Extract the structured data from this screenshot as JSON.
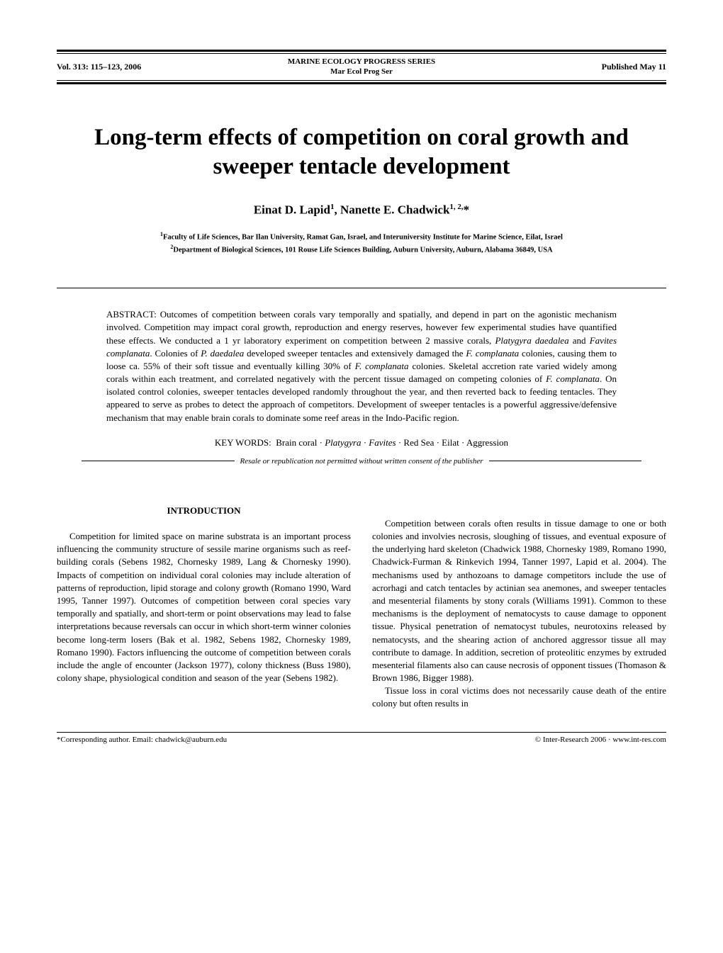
{
  "header": {
    "volume": "Vol. 313: 115–123, 2006",
    "journal_full": "MARINE ECOLOGY PROGRESS SERIES",
    "journal_abbr": "Mar Ecol Prog Ser",
    "published": "Published May 11"
  },
  "title": "Long-term effects of competition on coral growth and sweeper tentacle development",
  "authors_html": "Einat D. Lapid<sup>1</sup>, Nanette E. Chadwick<sup>1, 2,</sup>*",
  "affiliations": {
    "aff1": "Faculty of Life Sciences, Bar Ilan University, Ramat Gan, Israel, and Interuniversity Institute for Marine Science, Eilat, Israel",
    "aff2": "Department of Biological Sciences, 101 Rouse Life Sciences Building, Auburn University, Auburn, Alabama 36849, USA"
  },
  "abstract_label": "ABSTRACT:",
  "abstract_html": "Outcomes of competition between corals vary temporally and spatially, and depend in part on the agonistic mechanism involved. Competition may impact coral growth, reproduction and energy reserves, however few experimental studies have quantified these effects. We conducted a 1 yr laboratory experiment on competition between 2 massive corals, <span class=\"italic\">Platygyra daedalea</span> and <span class=\"italic\">Favites complanata</span>. Colonies of <span class=\"italic\">P. daedalea</span> developed sweeper tentacles and extensively damaged the <span class=\"italic\">F. complanata</span> colonies, causing them to loose ca. 55% of their soft tissue and eventually killing 30% of <span class=\"italic\">F. complanata</span> colonies. Skeletal accretion rate varied widely among corals within each treatment, and correlated negatively with the percent tissue damaged on competing colonies of <span class=\"italic\">F. complanata</span>. On isolated control colonies, sweeper tentacles developed randomly throughout the year, and then reverted back to feeding tentacles. They appeared to serve as probes to detect the approach of competitors. Development of sweeper tentacles is a powerful aggressive/defensive mechanism that may enable brain corals to dominate some reef areas in the Indo-Pacific region.",
  "keywords_label": "KEY WORDS:",
  "keywords_html": "Brain coral · <span class=\"italic\">Platygyra</span> · <span class=\"italic\">Favites</span> · Red Sea · Eilat · Aggression",
  "resale": "Resale or republication not permitted without written consent of the publisher",
  "section_intro": "INTRODUCTION",
  "body": {
    "col1_p1": "Competition for limited space on marine substrata is an important process influencing the community structure of sessile marine organisms such as reef-building corals (Sebens 1982, Chornesky 1989, Lang & Chornesky 1990). Impacts of competition on individual coral colonies may include alteration of patterns of reproduction, lipid storage and colony growth (Romano 1990, Ward 1995, Tanner 1997). Outcomes of competition between coral species vary temporally and spatially, and short-term or point observations may lead to false interpretations because reversals can occur in which short-term winner colonies become long-term losers (Bak et al. 1982, Sebens 1982, Chornesky 1989, Romano 1990). Factors influencing the outcome of competition between corals include the angle of encounter (Jackson 1977), colony thickness (Buss 1980), colony shape, physiological condition and season of the year (Sebens 1982).",
    "col2_p1": "Competition between corals often results in tissue damage to one or both colonies and involvies necrosis, sloughing of tissues, and eventual exposure of the underlying hard skeleton (Chadwick 1988, Chornesky 1989, Romano 1990, Chadwick-Furman & Rinkevich 1994, Tanner 1997, Lapid et al. 2004). The mechanisms used by anthozoans to damage competitors include the use of acrorhagi and catch tentacles by actinian sea anemones, and sweeper tentacles and mesenterial filaments by stony corals (Williams 1991). Common to these mechanisms is the deployment of nematocysts to cause damage to opponent tissue. Physical penetration of nematocyst tubules, neurotoxins released by nematocysts, and the shearing action of anchored aggressor tissue all may contribute to damage. In addition, secretion of proteolitic enzymes by extruded mesenterial filaments also can cause necrosis of opponent tissues (Thomason & Brown 1986, Bigger 1988).",
    "col2_p2": "Tissue loss in coral victims does not necessarily cause death of the entire colony but often results in"
  },
  "footer": {
    "corresponding": "*Corresponding author. Email: chadwick@auburn.edu",
    "copyright": "© Inter-Research 2006 · www.int-res.com"
  }
}
